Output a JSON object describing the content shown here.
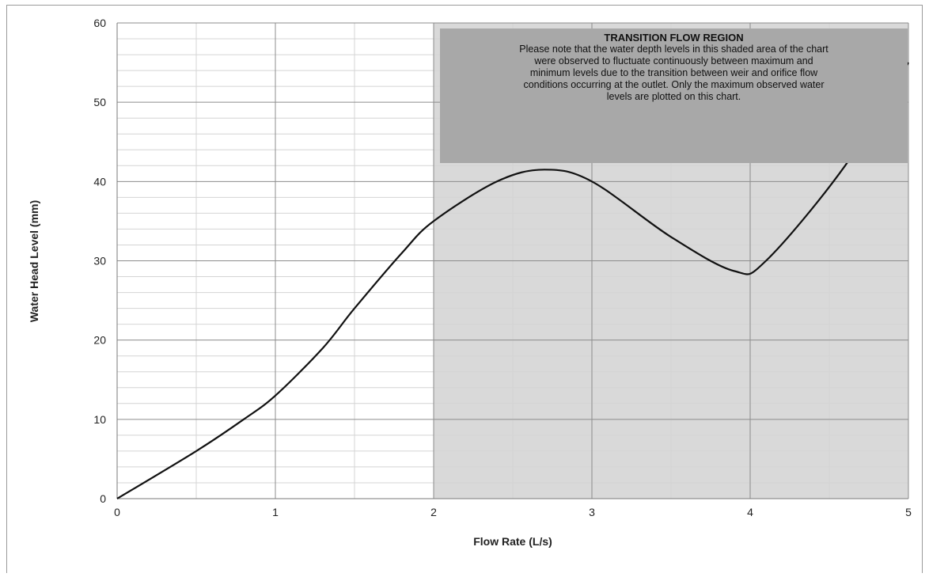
{
  "chart_data": {
    "type": "line",
    "xlabel": "Flow Rate (L/s)",
    "ylabel": "Water Head Level (mm)",
    "xlim": [
      0,
      5
    ],
    "ylim": [
      0,
      60
    ],
    "x_ticks": [
      0,
      1,
      2,
      3,
      4,
      5
    ],
    "y_ticks": [
      0,
      10,
      20,
      30,
      40,
      50,
      60
    ],
    "x_tick_labels": [
      "0",
      "1",
      "2",
      "3",
      "4",
      "5"
    ],
    "y_tick_labels": [
      "0",
      "10",
      "20",
      "30",
      "40",
      "50",
      "60"
    ],
    "x_minor_step": 0.5,
    "y_minor_step": 2,
    "grid": true,
    "legend": "none",
    "shaded_region": {
      "x_start": 2,
      "x_end": 5
    },
    "series": [
      {
        "x": [
          0,
          0.5,
          0.8,
          1.0,
          1.3,
          1.5,
          1.8,
          2.0,
          2.4,
          2.7,
          3.0,
          3.5,
          3.9,
          4.1,
          4.6,
          5.0
        ],
        "y": [
          0,
          6,
          10,
          13,
          19,
          24,
          31,
          35,
          40,
          41.5,
          40,
          33,
          28.7,
          30,
          42,
          55
        ]
      }
    ],
    "annotation": {
      "title": "TRANSITION FLOW REGION",
      "lines": [
        "Please note that the water depth levels in this shaded area of the chart",
        "were observed to fluctuate continuously between maximum and",
        "minimum levels due to the transition between weir and orifice flow",
        "conditions occurring at the outlet. Only the maximum observed water",
        "levels are plotted on this chart."
      ]
    },
    "colors": {
      "shaded_region": "#d9d9d9",
      "annotation_box": "#a8a8a8",
      "line": "#111111",
      "major_grid": "#8c8c8c",
      "minor_grid": "#d4d4d4"
    }
  }
}
